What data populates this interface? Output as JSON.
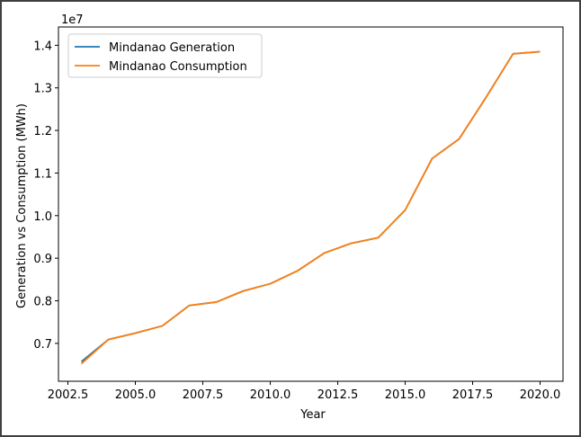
{
  "chart_data": {
    "type": "line",
    "title": "",
    "xlabel": "Year",
    "ylabel": "Generation vs Consumption (MWh)",
    "y_offset_label": "1e7",
    "xlim": [
      2002.15,
      2020.85
    ],
    "ylim": [
      6110000,
      14430000
    ],
    "xticks": [
      2002.5,
      2005.0,
      2007.5,
      2010.0,
      2012.5,
      2015.0,
      2017.5,
      2020.0
    ],
    "xtick_labels": [
      "2002.5",
      "2005.0",
      "2007.5",
      "2010.0",
      "2012.5",
      "2015.0",
      "2017.5",
      "2020.0"
    ],
    "yticks": [
      7000000,
      8000000,
      9000000,
      10000000,
      11000000,
      12000000,
      13000000,
      14000000
    ],
    "ytick_labels": [
      "0.7",
      "0.8",
      "0.9",
      "1.0",
      "1.1",
      "1.2",
      "1.3",
      "1.4"
    ],
    "legend_position": "upper-left",
    "grid": false,
    "x": [
      2003,
      2004,
      2005,
      2006,
      2007,
      2008,
      2009,
      2010,
      2011,
      2012,
      2013,
      2014,
      2015,
      2016,
      2017,
      2018,
      2019,
      2020
    ],
    "series": [
      {
        "name": "Mindanao Generation",
        "color": "#1f77b4",
        "values": [
          6570000,
          7090000,
          7240000,
          7410000,
          7890000,
          7970000,
          8230000,
          8400000,
          8700000,
          9120000,
          9350000,
          9480000,
          10130000,
          11340000,
          11800000,
          12780000,
          13800000,
          13850000
        ]
      },
      {
        "name": "Mindanao Consumption",
        "color": "#ff7f0e",
        "values": [
          6520000,
          7090000,
          7240000,
          7410000,
          7890000,
          7970000,
          8230000,
          8400000,
          8700000,
          9120000,
          9350000,
          9480000,
          10130000,
          11340000,
          11800000,
          12780000,
          13800000,
          13850000
        ]
      }
    ]
  }
}
